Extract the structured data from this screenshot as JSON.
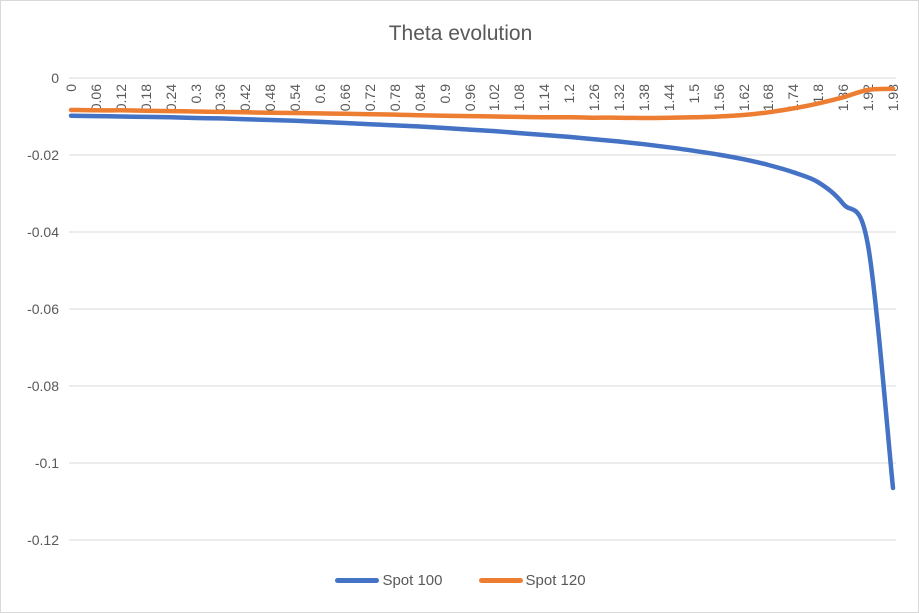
{
  "colors": {
    "background": "#ffffff",
    "chart_border": "#d9d9d9",
    "gridline": "#d9d9d9",
    "text": "#595959"
  },
  "chart_data": {
    "type": "line",
    "title": "Theta evolution",
    "xlabel": "",
    "ylabel": "",
    "ylim": [
      -0.12,
      0
    ],
    "grid": "horizontal",
    "legend_position": "bottom",
    "x_tick_rotation": -90,
    "ytick_labels": [
      "0",
      "-0.02",
      "-0.04",
      "-0.06",
      "-0.08",
      "-0.1",
      "-0.12"
    ],
    "ytick_values": [
      0,
      -0.02,
      -0.04,
      -0.06,
      -0.08,
      -0.1,
      -0.12
    ],
    "categories": [
      "0",
      "0.06",
      "0.12",
      "0.18",
      "0.24",
      "0.3",
      "0.36",
      "0.42",
      "0.48",
      "0.54",
      "0.6",
      "0.66",
      "0.72",
      "0.78",
      "0.84",
      "0.9",
      "0.96",
      "1.02",
      "1.08",
      "1.14",
      "1.2",
      "1.26",
      "1.32",
      "1.38",
      "1.44",
      "1.5",
      "1.56",
      "1.62",
      "1.68",
      "1.74",
      "1.8",
      "1.86",
      "1.92",
      "1.98"
    ],
    "series": [
      {
        "name": "Spot 100",
        "color": "#4472c4",
        "values": [
          -0.0098,
          -0.0099,
          -0.01,
          -0.0101,
          -0.0102,
          -0.0104,
          -0.0105,
          -0.0107,
          -0.0109,
          -0.0111,
          -0.0114,
          -0.0117,
          -0.012,
          -0.0123,
          -0.0126,
          -0.013,
          -0.0134,
          -0.0138,
          -0.0143,
          -0.0148,
          -0.0153,
          -0.0159,
          -0.0165,
          -0.0172,
          -0.018,
          -0.0189,
          -0.0199,
          -0.0211,
          -0.0226,
          -0.0245,
          -0.0271,
          -0.0327,
          -0.0436,
          -0.1065
        ]
      },
      {
        "name": "Spot 120",
        "color": "#ed7d31",
        "values": [
          -0.0083,
          -0.0084,
          -0.0084,
          -0.0085,
          -0.0086,
          -0.0087,
          -0.0088,
          -0.0089,
          -0.009,
          -0.0091,
          -0.0092,
          -0.0093,
          -0.0094,
          -0.0095,
          -0.0097,
          -0.0098,
          -0.0099,
          -0.01,
          -0.0101,
          -0.0102,
          -0.0102,
          -0.0103,
          -0.0103,
          -0.0104,
          -0.0103,
          -0.0102,
          -0.01,
          -0.0096,
          -0.0089,
          -0.0079,
          -0.0066,
          -0.005,
          -0.0031,
          -0.0028
        ]
      }
    ]
  }
}
